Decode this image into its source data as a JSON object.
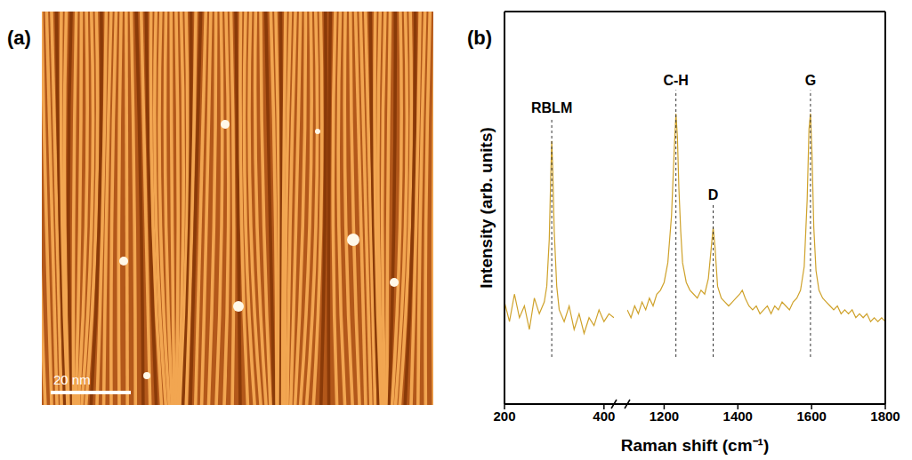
{
  "image_panel": {
    "label": "(a)",
    "scale_bar": "20 nm"
  },
  "chart_data": {
    "type": "line",
    "panel_label": "(b)",
    "x_label": "Raman shift (cm⁻¹)",
    "y_label": "Intensity (arb. units)",
    "color": "#cfa22b",
    "tick_labels": "x",
    "grid": false,
    "ylim": [
      0,
      100
    ],
    "x_segments": [
      {
        "xlim": [
          200,
          420
        ],
        "xticks": [
          200,
          400
        ]
      },
      {
        "xlim": [
          1100,
          1800
        ],
        "xticks": [
          1200,
          1400,
          1600,
          1800
        ]
      }
    ],
    "x": [
      200,
      210,
      220,
      230,
      240,
      250,
      260,
      270,
      280,
      285,
      290,
      293,
      295,
      297,
      300,
      305,
      310,
      320,
      330,
      340,
      350,
      360,
      370,
      380,
      390,
      400,
      410,
      420,
      1100,
      1110,
      1120,
      1130,
      1140,
      1150,
      1160,
      1170,
      1180,
      1190,
      1200,
      1210,
      1220,
      1228,
      1232,
      1236,
      1240,
      1245,
      1250,
      1260,
      1270,
      1280,
      1290,
      1300,
      1310,
      1320,
      1328,
      1333,
      1338,
      1345,
      1355,
      1365,
      1375,
      1385,
      1395,
      1405,
      1412,
      1420,
      1430,
      1440,
      1450,
      1460,
      1470,
      1480,
      1490,
      1500,
      1510,
      1520,
      1530,
      1540,
      1550,
      1560,
      1570,
      1580,
      1588,
      1593,
      1597,
      1601,
      1606,
      1612,
      1620,
      1630,
      1640,
      1650,
      1660,
      1670,
      1680,
      1690,
      1700,
      1710,
      1720,
      1730,
      1740,
      1750,
      1760,
      1770,
      1780,
      1790,
      1800
    ],
    "values": [
      26,
      21,
      28,
      22,
      25,
      19,
      27,
      23,
      26,
      30,
      42,
      58,
      67,
      60,
      44,
      30,
      24,
      21,
      25,
      19,
      23,
      18,
      22,
      20,
      24,
      21,
      23,
      22,
      24,
      22,
      25,
      23,
      26,
      24,
      27,
      25,
      28,
      29,
      31,
      36,
      48,
      66,
      74,
      68,
      55,
      44,
      36,
      31,
      29,
      28,
      27,
      29,
      28,
      32,
      40,
      45,
      40,
      30,
      27,
      26,
      25,
      26,
      27,
      28,
      29,
      27,
      25,
      24,
      25,
      23,
      24,
      25,
      23,
      25,
      24,
      26,
      25,
      24,
      26,
      27,
      29,
      35,
      52,
      70,
      74,
      64,
      45,
      34,
      29,
      27,
      26,
      25,
      24,
      25,
      23,
      24,
      23,
      24,
      22,
      23,
      22,
      23,
      21,
      22,
      21,
      22,
      21
    ],
    "annotations": [
      {
        "text": "RBLM",
        "x": 295
      },
      {
        "text": "C-H",
        "x": 1232
      },
      {
        "text": "D",
        "x": 1333
      },
      {
        "text": "G",
        "x": 1597
      }
    ]
  }
}
